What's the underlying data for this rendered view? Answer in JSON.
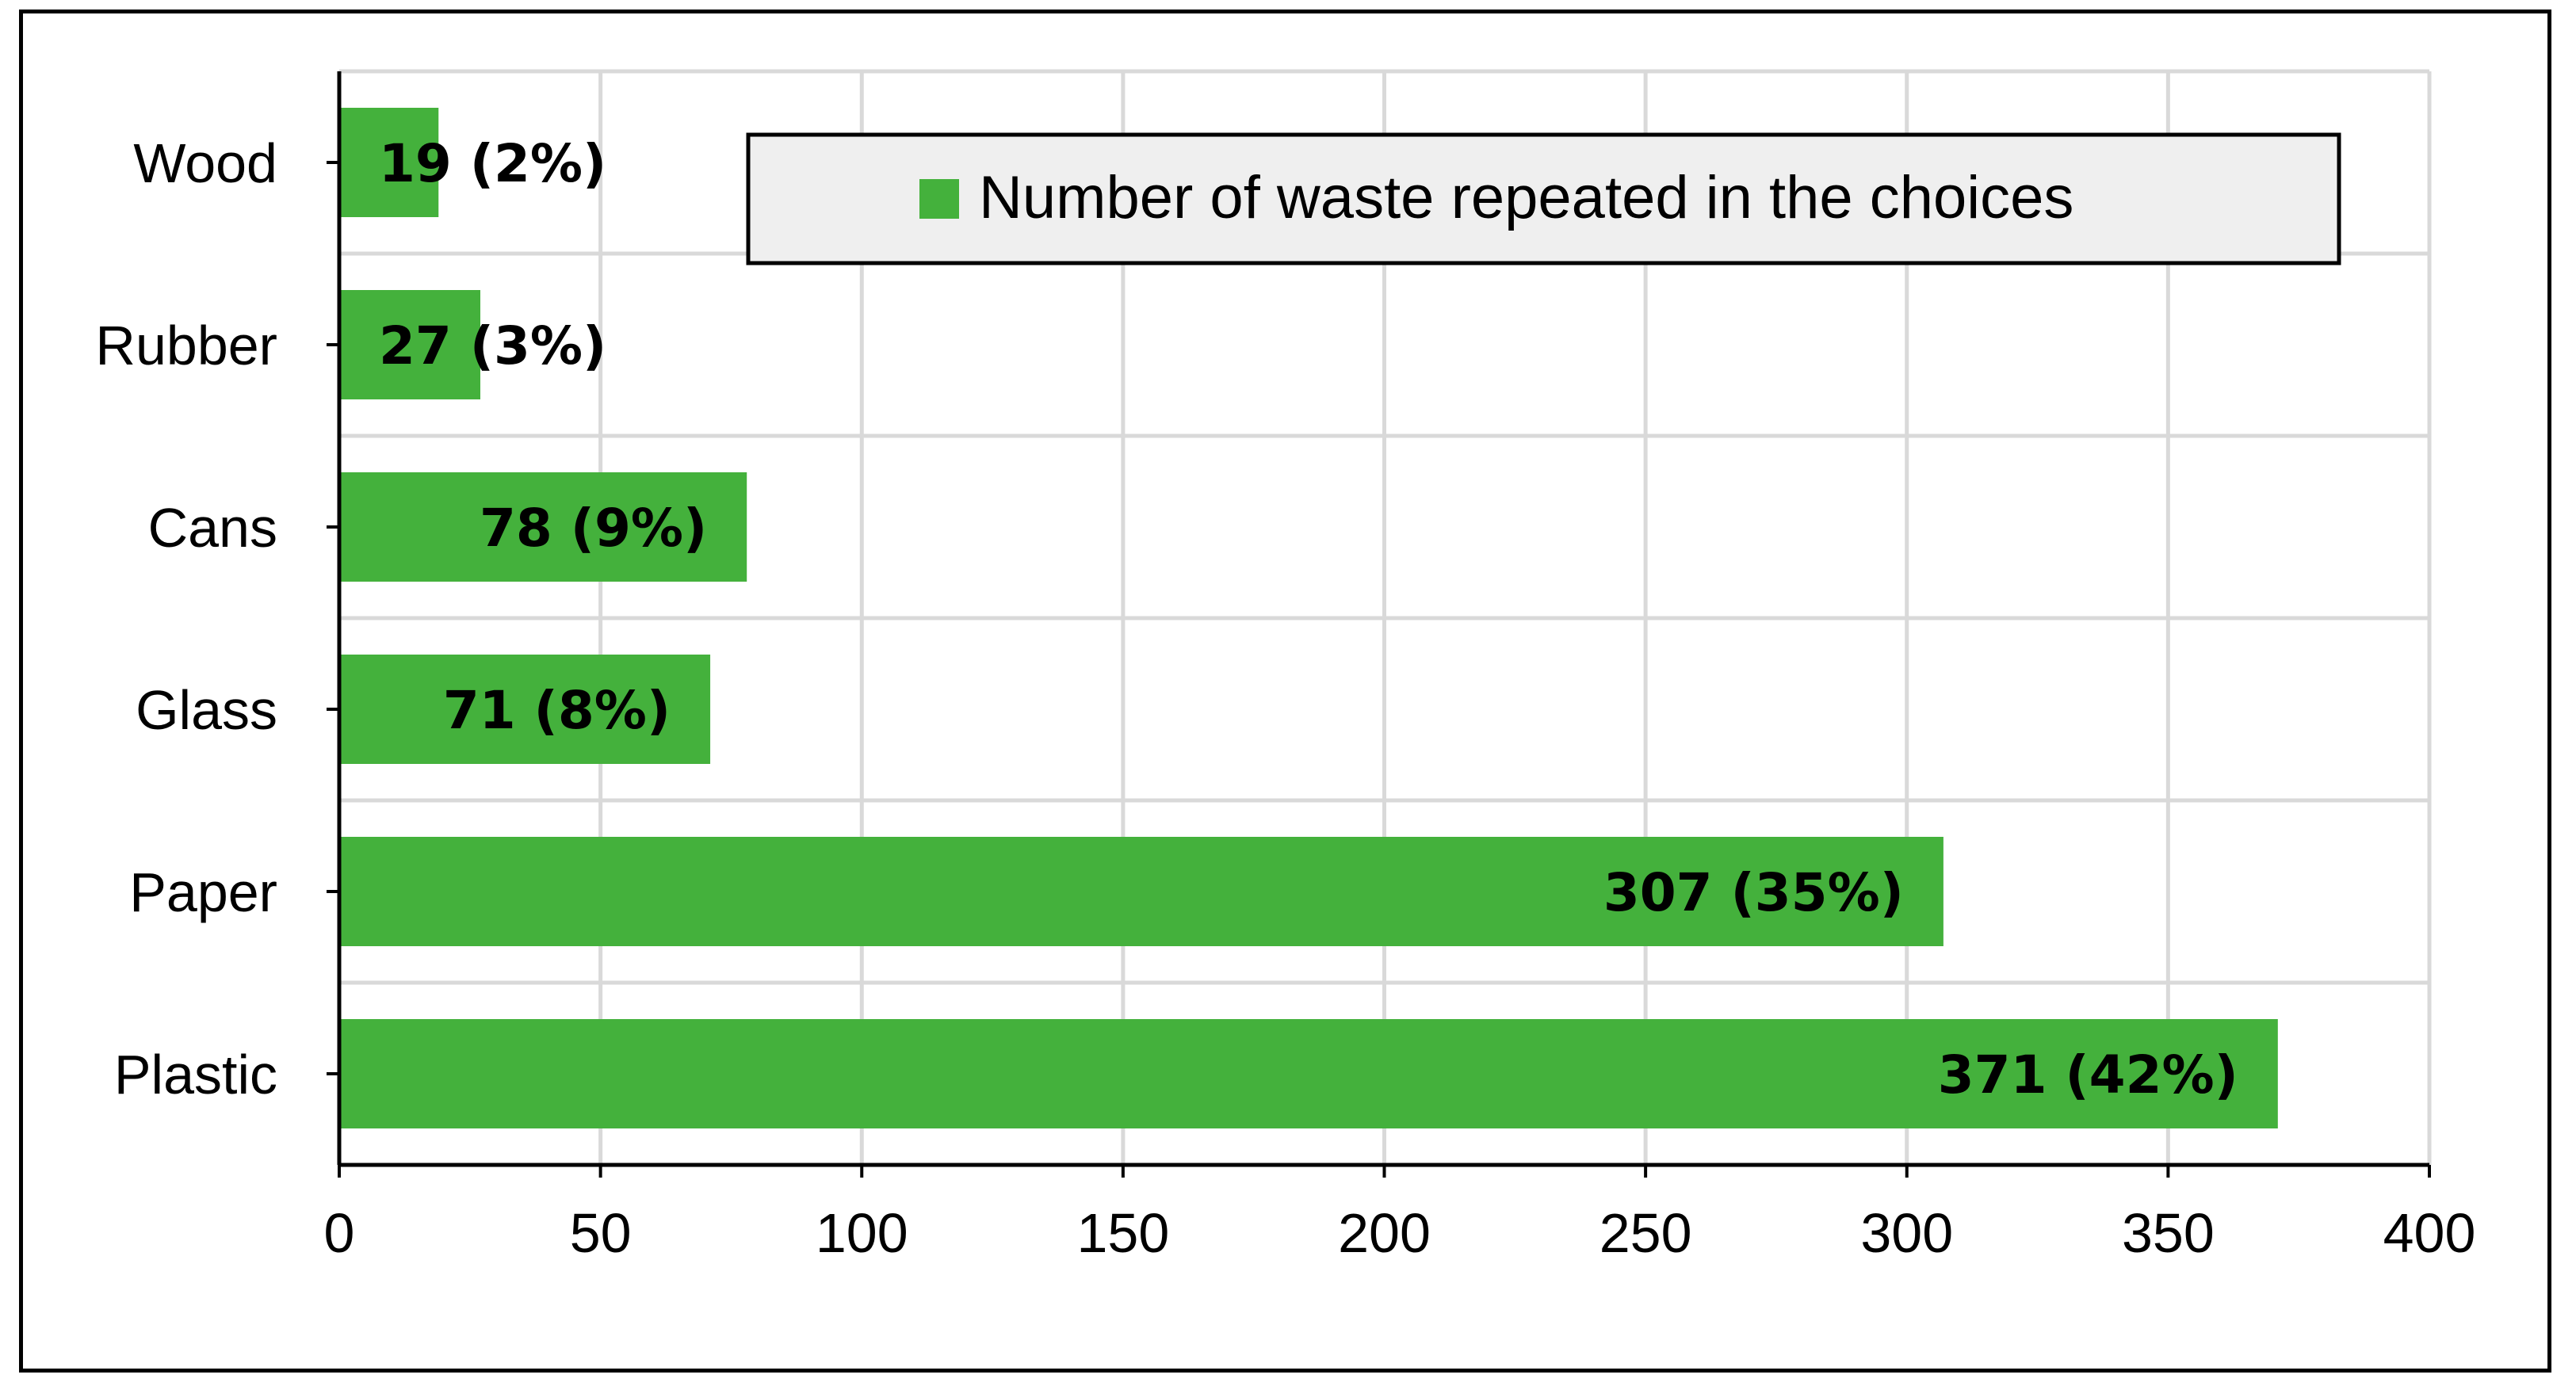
{
  "chart_data": {
    "type": "bar",
    "orientation": "horizontal",
    "categories": [
      "Plastic",
      "Paper",
      "Glass",
      "Cans",
      "Rubber",
      "Wood"
    ],
    "series": [
      {
        "name": "Number of waste repeated in the choices",
        "values": [
          371,
          307,
          71,
          78,
          27,
          19
        ],
        "labels": [
          "371 (42%)",
          "307 (35%)",
          "71 (8%)",
          "78 (9%)",
          "27 (3%)",
          "19 (2%)"
        ],
        "color": "#44B13C"
      }
    ],
    "xlim": [
      0,
      400
    ],
    "x_ticks": [
      "0",
      "50",
      "100",
      "150",
      "200",
      "250",
      "300",
      "350",
      "400"
    ],
    "grid": true,
    "legend_position": "top-right"
  }
}
